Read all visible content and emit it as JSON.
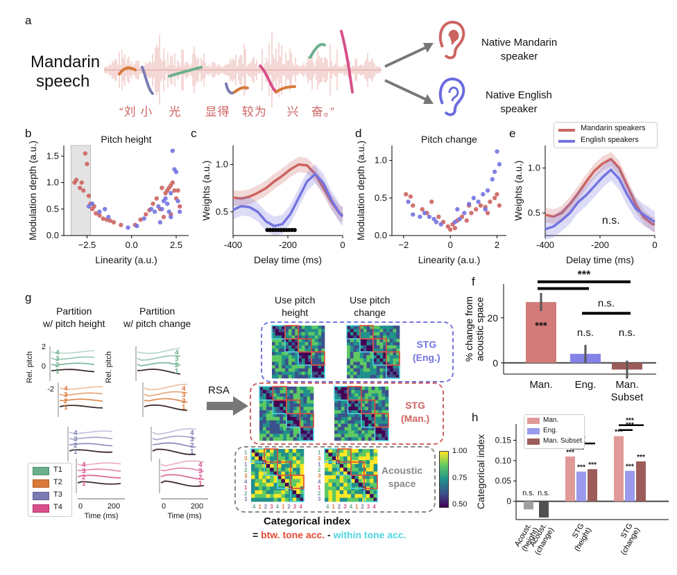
{
  "panel_labels": {
    "a": "a",
    "b": "b",
    "c": "c",
    "d": "d",
    "e": "e",
    "f": "f",
    "g": "g",
    "h": "h"
  },
  "panel_a": {
    "speech_label_1": "Mandarin",
    "speech_label_2": "speech",
    "chinese_text": [
      "“刘",
      "小",
      "光",
      "显得",
      "较为",
      "兴",
      "奋。”"
    ],
    "listener_1": [
      "Native Mandarin",
      "speaker"
    ],
    "listener_2": [
      "Native English",
      "speaker"
    ]
  },
  "legend_top": {
    "mandarin": "Mandarin speakers",
    "english": "English speakers"
  },
  "colors": {
    "mandarin": "#cc6461",
    "english": "#7373e0",
    "gray": "#888888",
    "dark": "#5a5a5a",
    "man_subset": "#9c5c5a",
    "t1": "#6aae8c",
    "t2": "#d9793a",
    "t3": "#7c7cb3",
    "t4": "#d7508a",
    "red_box": "#e24a33",
    "cyan_box": "#4fd6e0"
  },
  "chart_data": [
    {
      "id": "b",
      "type": "scatter",
      "title": "Pitch height",
      "xlabel": "Linearity (a.u.)",
      "ylabel": "Modulation depth (a.u.)",
      "xlim": [
        -3.8,
        3.2
      ],
      "ylim": [
        0,
        1.7
      ],
      "xticks": [
        "−2.5",
        "0.0",
        "2.5"
      ],
      "xtick_values": [
        -2.5,
        0,
        2.5
      ],
      "yticks": [
        "0.0",
        "0.5",
        "1.0",
        "1.5"
      ],
      "ytick_values": [
        0,
        0.5,
        1.0,
        1.5
      ],
      "shaded_range": [
        -3.4,
        -2.3
      ],
      "series": [
        {
          "name": "Mandarin speakers",
          "points": [
            [
              -3.2,
              1.0
            ],
            [
              -3.1,
              1.05
            ],
            [
              -2.9,
              0.9
            ],
            [
              -2.8,
              1.0
            ],
            [
              -2.7,
              0.85
            ],
            [
              -2.6,
              1.55
            ],
            [
              -2.5,
              1.35
            ],
            [
              -2.4,
              0.75
            ],
            [
              -2.3,
              0.6
            ],
            [
              -2.2,
              0.5
            ],
            [
              -2.1,
              0.55
            ],
            [
              -2.0,
              0.42
            ],
            [
              -1.8,
              0.38
            ],
            [
              -1.6,
              0.32
            ],
            [
              -1.4,
              0.3
            ],
            [
              -1.2,
              0.28
            ],
            [
              -1.0,
              0.25
            ],
            [
              -0.6,
              0.2
            ],
            [
              0.2,
              0.2
            ],
            [
              0.5,
              0.3
            ],
            [
              0.8,
              0.4
            ],
            [
              1.0,
              0.48
            ],
            [
              1.2,
              0.6
            ],
            [
              1.4,
              0.7
            ],
            [
              1.6,
              0.5
            ],
            [
              1.8,
              0.35
            ],
            [
              1.9,
              0.8
            ],
            [
              2.0,
              0.85
            ],
            [
              2.1,
              0.9
            ],
            [
              2.2,
              0.95
            ],
            [
              2.3,
              1.0
            ],
            [
              2.4,
              0.85
            ],
            [
              2.5,
              0.7
            ],
            [
              2.6,
              0.85
            ],
            [
              2.7,
              0.55
            ],
            [
              2.2,
              0.4
            ],
            [
              1.7,
              0.9
            ]
          ]
        },
        {
          "name": "English speakers",
          "points": [
            [
              -2.4,
              0.55
            ],
            [
              -2.2,
              0.6
            ],
            [
              -1.8,
              0.45
            ],
            [
              -1.5,
              0.5
            ],
            [
              -1.3,
              0.35
            ],
            [
              -0.2,
              0.15
            ],
            [
              0.3,
              0.18
            ],
            [
              0.7,
              0.32
            ],
            [
              1.1,
              0.5
            ],
            [
              1.3,
              0.45
            ],
            [
              1.5,
              0.55
            ],
            [
              1.7,
              0.5
            ],
            [
              1.8,
              0.65
            ],
            [
              1.9,
              0.7
            ],
            [
              2.0,
              0.6
            ],
            [
              2.1,
              0.45
            ],
            [
              2.2,
              0.35
            ],
            [
              2.3,
              1.6
            ],
            [
              2.4,
              1.25
            ],
            [
              2.5,
              1.2
            ],
            [
              2.6,
              0.65
            ],
            [
              2.7,
              0.45
            ],
            [
              2.2,
              0.8
            ],
            [
              1.6,
              0.25
            ]
          ]
        }
      ]
    },
    {
      "id": "c",
      "type": "line",
      "xlabel": "Delay time (ms)",
      "ylabel": "Weights (a.u.)",
      "xlim": [
        -400,
        0
      ],
      "ylim": [
        0.25,
        1.2
      ],
      "xticks": [
        "-400",
        "-200",
        "0"
      ],
      "xtick_values": [
        -400,
        -200,
        0
      ],
      "yticks": [
        "0.5",
        "1.0"
      ],
      "ytick_values": [
        0.5,
        1.0
      ],
      "significance_range": [
        -275,
        -175
      ],
      "series": [
        {
          "name": "Mandarin speakers",
          "x": [
            -400,
            -370,
            -340,
            -310,
            -280,
            -250,
            -220,
            -190,
            -160,
            -130,
            -100,
            -70,
            -40,
            -10,
            0
          ],
          "y": [
            0.65,
            0.64,
            0.66,
            0.7,
            0.75,
            0.82,
            0.88,
            0.95,
            1.0,
            0.99,
            0.9,
            0.75,
            0.6,
            0.48,
            0.47
          ],
          "ci": 0.08
        },
        {
          "name": "English speakers",
          "x": [
            -400,
            -370,
            -340,
            -310,
            -280,
            -250,
            -220,
            -190,
            -160,
            -130,
            -100,
            -70,
            -40,
            -10,
            0
          ],
          "y": [
            0.52,
            0.56,
            0.55,
            0.5,
            0.4,
            0.35,
            0.37,
            0.48,
            0.65,
            0.82,
            0.9,
            0.8,
            0.62,
            0.48,
            0.45
          ],
          "ci": 0.1
        }
      ]
    },
    {
      "id": "d",
      "type": "scatter",
      "title": "Pitch change",
      "xlabel": "Linearity (a.u.)",
      "ylabel": "Modulation depth (a.u.)",
      "xlim": [
        -2.5,
        2.4
      ],
      "ylim": [
        0,
        1.2
      ],
      "xticks": [
        "−2",
        "0",
        "2"
      ],
      "xtick_values": [
        -2,
        0,
        2
      ],
      "yticks": [
        "0.0",
        "0.5",
        "1.0"
      ],
      "ytick_values": [
        0,
        0.5,
        1.0
      ],
      "series": [
        {
          "name": "Mandarin speakers",
          "points": [
            [
              -1.9,
              0.55
            ],
            [
              -1.7,
              0.52
            ],
            [
              -1.6,
              0.4
            ],
            [
              -1.2,
              0.35
            ],
            [
              -1.0,
              0.3
            ],
            [
              -0.8,
              0.45
            ],
            [
              -0.5,
              0.25
            ],
            [
              -0.3,
              0.18
            ],
            [
              -0.1,
              0.12
            ],
            [
              0.0,
              0.08
            ],
            [
              0.1,
              0.15
            ],
            [
              0.2,
              0.1
            ],
            [
              0.3,
              0.2
            ],
            [
              0.5,
              0.25
            ],
            [
              0.7,
              0.2
            ],
            [
              0.9,
              0.3
            ],
            [
              1.1,
              0.35
            ],
            [
              1.3,
              0.4
            ],
            [
              1.5,
              0.38
            ],
            [
              1.7,
              0.45
            ],
            [
              1.9,
              0.5
            ],
            [
              2.0,
              0.55
            ],
            [
              2.1,
              0.4
            ],
            [
              1.6,
              0.3
            ],
            [
              0.8,
              0.4
            ]
          ]
        },
        {
          "name": "English speakers",
          "points": [
            [
              -1.8,
              0.45
            ],
            [
              -1.6,
              0.28
            ],
            [
              -1.3,
              0.25
            ],
            [
              -1.1,
              0.3
            ],
            [
              -0.9,
              0.25
            ],
            [
              -0.7,
              0.22
            ],
            [
              -0.6,
              0.18
            ],
            [
              -0.4,
              0.15
            ],
            [
              0.2,
              0.18
            ],
            [
              0.4,
              0.22
            ],
            [
              0.6,
              0.3
            ],
            [
              0.8,
              0.42
            ],
            [
              1.0,
              0.5
            ],
            [
              1.2,
              0.45
            ],
            [
              1.4,
              0.55
            ],
            [
              1.6,
              0.6
            ],
            [
              1.8,
              0.75
            ],
            [
              1.9,
              0.85
            ],
            [
              2.0,
              1.12
            ],
            [
              2.1,
              0.95
            ],
            [
              1.5,
              0.35
            ],
            [
              0.3,
              0.35
            ]
          ]
        }
      ]
    },
    {
      "id": "e",
      "type": "line",
      "xlabel": "Delay time (ms)",
      "ylabel": "Weights (a.u.)",
      "xlim": [
        -400,
        0
      ],
      "ylim": [
        0.25,
        1.25
      ],
      "xticks": [
        "-400",
        "-200",
        "0"
      ],
      "xtick_values": [
        -400,
        -200,
        0
      ],
      "yticks": [
        "0.5",
        "1.0"
      ],
      "ytick_values": [
        0.5,
        1.0
      ],
      "annotation": "n.s.",
      "series": [
        {
          "name": "Mandarin speakers",
          "x": [
            -400,
            -370,
            -340,
            -310,
            -280,
            -250,
            -220,
            -190,
            -160,
            -130,
            -100,
            -70,
            -40,
            -10,
            0
          ],
          "y": [
            0.48,
            0.46,
            0.5,
            0.6,
            0.72,
            0.85,
            0.97,
            1.05,
            1.1,
            1.0,
            0.8,
            0.6,
            0.45,
            0.38,
            0.37
          ],
          "ci": 0.08
        },
        {
          "name": "English speakers",
          "x": [
            -400,
            -370,
            -340,
            -310,
            -280,
            -250,
            -220,
            -190,
            -160,
            -130,
            -100,
            -70,
            -40,
            -10,
            0
          ],
          "y": [
            0.32,
            0.35,
            0.42,
            0.5,
            0.62,
            0.7,
            0.8,
            0.9,
            0.98,
            0.88,
            0.7,
            0.55,
            0.48,
            0.42,
            0.4
          ],
          "ci": 0.12
        }
      ]
    },
    {
      "id": "f",
      "type": "bar",
      "ylabel": "% change from acoustic space",
      "categories": [
        "Man.",
        "Eng.",
        "Man. Subset"
      ],
      "values": [
        27,
        4,
        -3
      ],
      "errors": [
        4,
        4,
        4
      ],
      "ylim": [
        -5,
        35
      ],
      "yticks": [
        "0",
        "20"
      ],
      "ytick_values": [
        0,
        20
      ],
      "bar_labels": [
        "***",
        "n.s.",
        "n.s."
      ],
      "comparisons": [
        {
          "pair": [
            0,
            2
          ],
          "label": "***"
        },
        {
          "pair": [
            0,
            1
          ],
          "label": ""
        },
        {
          "pair": [
            1,
            2
          ],
          "label": "n.s."
        }
      ]
    },
    {
      "id": "h",
      "type": "bar",
      "ylabel": "Categorical index",
      "groups": [
        "Acoust. (height)",
        "Acoust. (change)",
        "STG (height)",
        "STG (change)"
      ],
      "series": [
        {
          "name": "Man.",
          "values": [
            null,
            null,
            0.11,
            0.16
          ]
        },
        {
          "name": "Eng.",
          "values": [
            null,
            null,
            0.073,
            0.075
          ]
        },
        {
          "name": "Man. Subset",
          "values": [
            null,
            null,
            0.079,
            0.098
          ]
        },
        {
          "name": "Acoustic",
          "values": [
            -0.02,
            -0.04,
            null,
            null
          ]
        }
      ],
      "bar_labels": {
        "acoust": [
          "n.s.",
          "n.s."
        ],
        "stg_height": [
          "***",
          "***",
          "***"
        ],
        "stg_change": [
          "***",
          "***",
          "***"
        ]
      },
      "ylim": [
        -0.045,
        0.19
      ],
      "yticks": [
        "0",
        "0.05",
        "0.10",
        "0.15"
      ],
      "ytick_values": [
        0,
        0.05,
        0.1,
        0.15
      ]
    }
  ],
  "panel_g": {
    "col1_title": [
      "Partition",
      "w/ pitch height"
    ],
    "col2_title": [
      "Partition",
      "w/ pitch change"
    ],
    "ylabel": "Rel. pitch",
    "yticks": [
      "2",
      "0",
      "-2"
    ],
    "xlabel": "Time (ms)",
    "xticks": [
      "0",
      "200"
    ],
    "tone_numbers": [
      "4",
      "3",
      "2",
      "1"
    ],
    "legend": [
      "T1",
      "T2",
      "T3",
      "T4"
    ],
    "rsa": "RSA",
    "mat_col1": [
      "Use pitch",
      "height"
    ],
    "mat_col2": [
      "Use pitch",
      "change"
    ],
    "row_labels": {
      "stg_eng": [
        "STG",
        "(Eng.)"
      ],
      "stg_man": [
        "STG",
        "(Man.)"
      ],
      "acoustic": [
        "Acoustic",
        "space"
      ]
    },
    "colorbar": [
      "1.00",
      "0.75",
      "0.50"
    ],
    "matrix_axis": [
      "1",
      "3",
      "1",
      "2",
      "3",
      "4",
      "1",
      "2",
      "3",
      "4",
      "1",
      "2",
      "3",
      "4"
    ],
    "cat_title": "Categorical index",
    "cat_eq_prefix": "= ",
    "cat_btw": "btw. tone acc.",
    "cat_minus": " - ",
    "cat_within": "within tone acc."
  }
}
